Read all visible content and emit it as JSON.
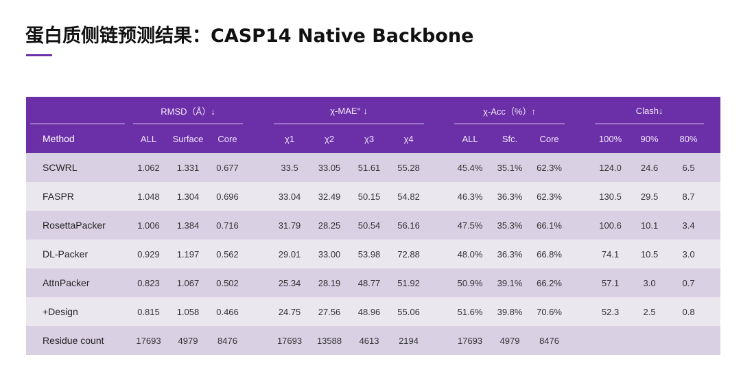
{
  "title": "蛋白质侧链预测结果：CASP14 Native Backbone",
  "accent_color": "#6b2fa8",
  "groups": {
    "rmsd": "RMSD（Å）↓",
    "mae": "χ-MAE° ↓",
    "acc": "χ-Acc（%）↑",
    "clash": "Clash↓"
  },
  "columns": [
    "Method",
    "ALL",
    "Surface",
    "Core",
    "χ1",
    "χ2",
    "χ3",
    "χ4",
    "ALL",
    "Sfc.",
    "Core",
    "100%",
    "90%",
    "80%"
  ],
  "rows": [
    [
      "SCWRL",
      "1.062",
      "1.331",
      "0.677",
      "33.5",
      "33.05",
      "51.61",
      "55.28",
      "45.4%",
      "35.1%",
      "62.3%",
      "124.0",
      "24.6",
      "6.5"
    ],
    [
      "FASPR",
      "1.048",
      "1.304",
      "0.696",
      "33.04",
      "32.49",
      "50.15",
      "54.82",
      "46.3%",
      "36.3%",
      "62.3%",
      "130.5",
      "29.5",
      "8.7"
    ],
    [
      "RosettaPacker",
      "1.006",
      "1.384",
      "0.716",
      "31.79",
      "28.25",
      "50.54",
      "56.16",
      "47.5%",
      "35.3%",
      "66.1%",
      "100.6",
      "10.1",
      "3.4"
    ],
    [
      "DL-Packer",
      "0.929",
      "1.197",
      "0.562",
      "29.01",
      "33.00",
      "53.98",
      "72.88",
      "48.0%",
      "36.3%",
      "66.8%",
      "74.1",
      "10.5",
      "3.0"
    ],
    [
      "AttnPacker",
      "0.823",
      "1.067",
      "0.502",
      "25.34",
      "28.19",
      "48.77",
      "51.92",
      "50.9%",
      "39.1%",
      "66.2%",
      "57.1",
      "3.0",
      "0.7"
    ],
    [
      "+Design",
      "0.815",
      "1.058",
      "0.466",
      "24.75",
      "27.56",
      "48.96",
      "55.06",
      "51.6%",
      "39.8%",
      "70.6%",
      "52.3",
      "2.5",
      "0.8"
    ],
    [
      "Residue count",
      "17693",
      "4979",
      "8476",
      "17693",
      "13588",
      "4613",
      "2194",
      "17693",
      "4979",
      "8476",
      "",
      "",
      ""
    ]
  ]
}
